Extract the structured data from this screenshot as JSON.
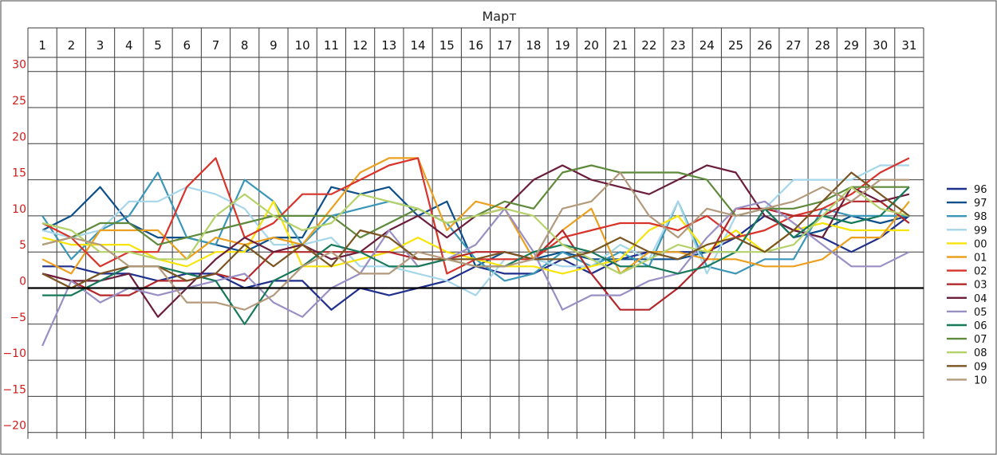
{
  "chart_data": {
    "type": "line",
    "title": "Март",
    "xlabel": "",
    "ylabel": "",
    "x": [
      1,
      2,
      3,
      4,
      5,
      6,
      7,
      8,
      9,
      10,
      11,
      12,
      13,
      14,
      15,
      16,
      17,
      18,
      19,
      20,
      21,
      22,
      23,
      24,
      25,
      26,
      27,
      28,
      29,
      30,
      31
    ],
    "ylim": [
      -20,
      30
    ],
    "yticks": [
      30,
      25,
      20,
      15,
      10,
      5,
      0,
      -5,
      -10,
      -15,
      -20
    ],
    "grid": true,
    "legend_position": "right",
    "series": [
      {
        "name": "96",
        "color": "#1f2f8c",
        "values": [
          3,
          3,
          2,
          2,
          1,
          2,
          2,
          0,
          1,
          1,
          -3,
          0,
          -1,
          0,
          1,
          3,
          2,
          2,
          4,
          2,
          4,
          5,
          5,
          5,
          7,
          10,
          8,
          7,
          5,
          7,
          10
        ]
      },
      {
        "name": "97",
        "color": "#0d4f8b",
        "values": [
          8,
          10,
          14,
          9,
          7,
          7,
          6,
          5,
          7,
          7,
          14,
          13,
          14,
          10,
          12,
          3,
          5,
          4,
          5,
          4,
          4,
          4,
          4,
          5,
          5,
          11,
          7,
          8,
          10,
          9,
          10
        ]
      },
      {
        "name": "98",
        "color": "#3b97b8",
        "values": [
          10,
          4,
          8,
          10,
          16,
          7,
          6,
          15,
          12,
          6,
          10,
          11,
          12,
          11,
          9,
          4,
          1,
          2,
          5,
          3,
          5,
          3,
          12,
          3,
          2,
          4,
          4,
          11,
          10,
          10,
          10
        ]
      },
      {
        "name": "99",
        "color": "#a6d6ea",
        "values": [
          8,
          7,
          8,
          12,
          12,
          14,
          13,
          11,
          6,
          6,
          7,
          3,
          3,
          2,
          1,
          -1,
          4,
          4,
          3,
          3,
          6,
          4,
          12,
          2,
          10,
          11,
          15,
          15,
          15,
          17,
          17
        ]
      },
      {
        "name": "00",
        "color": "#f6e40a",
        "values": [
          7,
          6,
          6,
          6,
          4,
          3,
          5,
          5,
          12,
          3,
          3,
          4,
          5,
          7,
          5,
          4,
          3,
          3,
          2,
          3,
          4,
          8,
          10,
          5,
          8,
          5,
          8,
          9,
          8,
          8,
          8
        ]
      },
      {
        "name": "01",
        "color": "#eba020",
        "values": [
          4,
          2,
          8,
          8,
          8,
          4,
          7,
          6,
          7,
          6,
          11,
          16,
          18,
          18,
          8,
          12,
          11,
          4,
          8,
          11,
          2,
          5,
          5,
          4,
          4,
          3,
          3,
          4,
          7,
          7,
          12
        ]
      },
      {
        "name": "02",
        "color": "#d8342b",
        "values": [
          9,
          7,
          3,
          5,
          5,
          14,
          18,
          7,
          9,
          13,
          13,
          15,
          17,
          18,
          2,
          4,
          4,
          4,
          7,
          8,
          9,
          9,
          8,
          10,
          7,
          8,
          10,
          11,
          13,
          16,
          18
        ]
      },
      {
        "name": "03",
        "color": "#b3272b",
        "values": [
          2,
          1,
          -1,
          -1,
          1,
          1,
          2,
          1,
          5,
          5,
          5,
          5,
          5,
          4,
          4,
          5,
          5,
          4,
          8,
          2,
          -3,
          -3,
          0,
          4,
          11,
          11,
          10,
          10,
          12,
          12,
          9
        ]
      },
      {
        "name": "04",
        "color": "#6b1e3c",
        "values": [
          2,
          1,
          1,
          2,
          -4,
          0,
          4,
          7,
          5,
          6,
          4,
          5,
          8,
          10,
          7,
          10,
          11,
          15,
          17,
          15,
          14,
          13,
          15,
          17,
          16,
          10,
          8,
          7,
          14,
          12,
          13
        ]
      },
      {
        "name": "05",
        "color": "#9a8fc4",
        "values": [
          -8,
          1,
          -2,
          0,
          -1,
          0,
          1,
          2,
          -2,
          -4,
          0,
          2,
          8,
          3,
          4,
          6,
          11,
          5,
          -3,
          -1,
          -1,
          1,
          2,
          7,
          11,
          12,
          9,
          6,
          3,
          3,
          5
        ]
      },
      {
        "name": "06",
        "color": "#17795a",
        "values": [
          -1,
          -1,
          1,
          3,
          3,
          2,
          1,
          -5,
          1,
          3,
          6,
          5,
          3,
          3,
          4,
          3,
          3,
          5,
          6,
          5,
          3,
          3,
          2,
          3,
          5,
          11,
          7,
          10,
          9,
          10,
          14
        ]
      },
      {
        "name": "07",
        "color": "#5f8a3c",
        "values": [
          6,
          7,
          9,
          9,
          6,
          7,
          8,
          9,
          10,
          10,
          10,
          7,
          9,
          11,
          9,
          10,
          12,
          11,
          16,
          17,
          16,
          16,
          16,
          15,
          10,
          11,
          11,
          12,
          14,
          14,
          14
        ]
      },
      {
        "name": "08",
        "color": "#b5d26a",
        "values": [
          9,
          8,
          5,
          5,
          4,
          4,
          10,
          13,
          10,
          8,
          9,
          13,
          12,
          11,
          9,
          10,
          11,
          10,
          6,
          4,
          2,
          4,
          6,
          5,
          5,
          5,
          6,
          10,
          14,
          11,
          10
        ]
      },
      {
        "name": "09",
        "color": "#7a5522",
        "values": [
          2,
          0,
          2,
          3,
          3,
          1,
          2,
          6,
          3,
          6,
          3,
          8,
          7,
          4,
          4,
          4,
          5,
          4,
          4,
          5,
          7,
          5,
          4,
          6,
          7,
          5,
          8,
          12,
          16,
          13,
          10
        ]
      },
      {
        "name": "10",
        "color": "#b49a7c",
        "values": [
          6,
          7,
          6,
          3,
          3,
          -2,
          -2,
          -3,
          -1,
          3,
          5,
          2,
          2,
          5,
          4,
          3,
          3,
          4,
          11,
          12,
          16,
          10,
          7,
          11,
          10,
          11,
          12,
          14,
          12,
          15,
          15
        ]
      }
    ]
  }
}
